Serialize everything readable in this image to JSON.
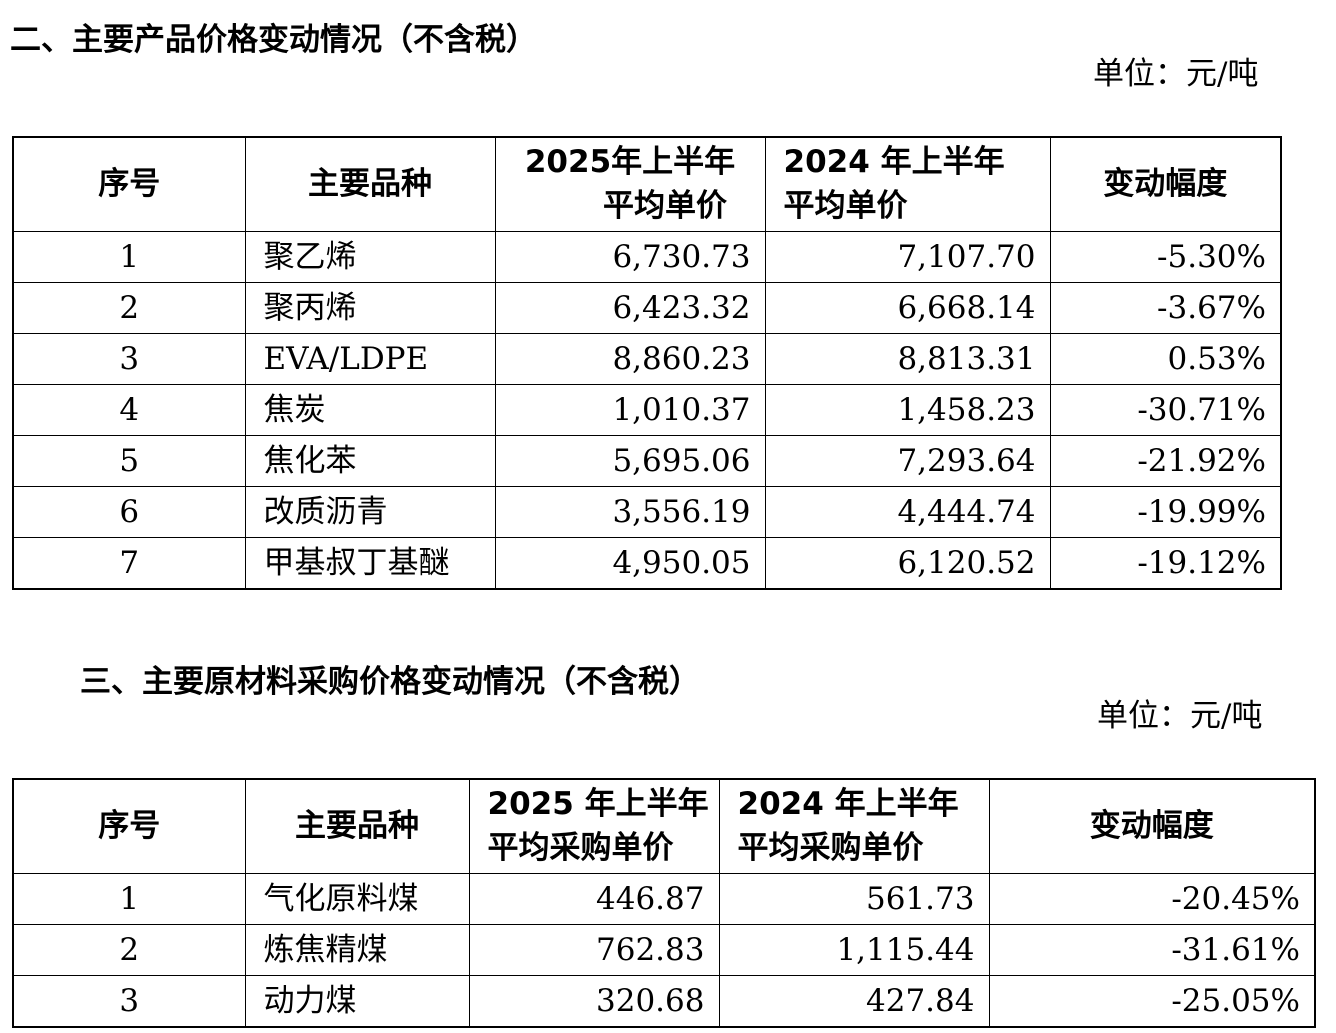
{
  "section2": {
    "title": "二、主要产品价格变动情况（不含税）",
    "unit": "单位：元/吨",
    "headers": {
      "seq": "序号",
      "item": "主要品种",
      "price_2025_line1": "2025年上半年",
      "price_2025_line2": "平均单价",
      "price_2024_line1": "2024 年上半年",
      "price_2024_line2": "平均单价",
      "change": "变动幅度"
    },
    "rows": [
      {
        "seq": "1",
        "item": "聚乙烯",
        "p2025": "6,730.73",
        "p2024": "7,107.70",
        "change": "-5.30%"
      },
      {
        "seq": "2",
        "item": "聚丙烯",
        "p2025": "6,423.32",
        "p2024": "6,668.14",
        "change": "-3.67%"
      },
      {
        "seq": "3",
        "item": "EVA/LDPE",
        "p2025": "8,860.23",
        "p2024": "8,813.31",
        "change": "0.53%"
      },
      {
        "seq": "4",
        "item": "焦炭",
        "p2025": "1,010.37",
        "p2024": "1,458.23",
        "change": "-30.71%"
      },
      {
        "seq": "5",
        "item": "焦化苯",
        "p2025": "5,695.06",
        "p2024": "7,293.64",
        "change": "-21.92%"
      },
      {
        "seq": "6",
        "item": "改质沥青",
        "p2025": "3,556.19",
        "p2024": "4,444.74",
        "change": "-19.99%"
      },
      {
        "seq": "7",
        "item": "甲基叔丁基醚",
        "p2025": "4,950.05",
        "p2024": "6,120.52",
        "change": "-19.12%"
      }
    ]
  },
  "section3": {
    "title": "三、主要原材料采购价格变动情况（不含税）",
    "unit": "单位：元/吨",
    "headers": {
      "seq": "序号",
      "item": "主要品种",
      "price_2025_line1": "2025 年上半年",
      "price_2025_line2": "平均采购单价",
      "price_2024_line1": "2024 年上半年",
      "price_2024_line2": "平均采购单价",
      "change": "变动幅度"
    },
    "rows": [
      {
        "seq": "1",
        "item": "气化原料煤",
        "p2025": "446.87",
        "p2024": "561.73",
        "change": "-20.45%"
      },
      {
        "seq": "2",
        "item": "炼焦精煤",
        "p2025": "762.83",
        "p2024": "1,115.44",
        "change": "-31.61%"
      },
      {
        "seq": "3",
        "item": "动力煤",
        "p2025": "320.68",
        "p2024": "427.84",
        "change": "-25.05%"
      }
    ]
  }
}
